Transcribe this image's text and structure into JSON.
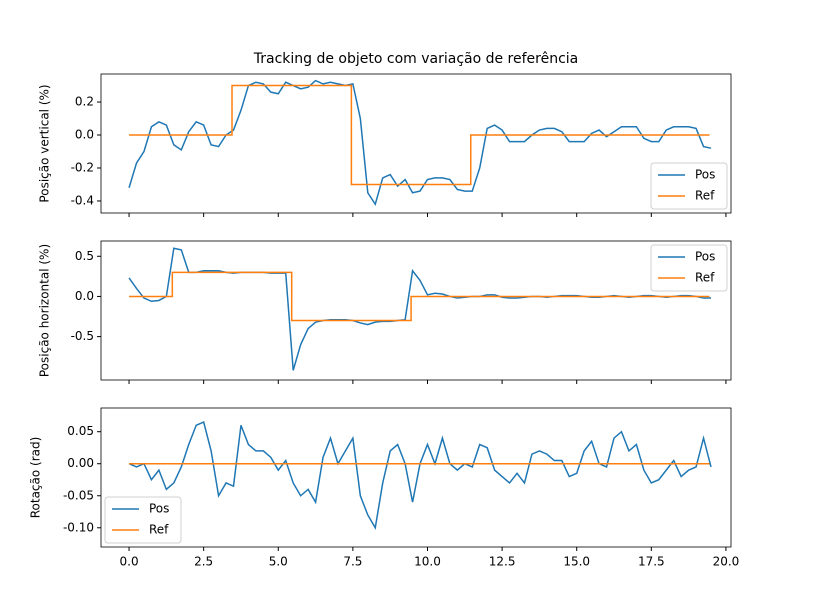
{
  "chart_data": [
    {
      "type": "line",
      "title": "Tracking de objeto com variação de referência",
      "y_label": "Posição vertical (%)",
      "x": [
        0,
        0.25,
        0.5,
        0.75,
        1,
        1.25,
        1.5,
        1.75,
        2,
        2.25,
        2.5,
        2.75,
        3,
        3.25,
        3.5,
        3.75,
        4,
        4.25,
        4.5,
        4.75,
        5,
        5.25,
        5.5,
        5.75,
        6,
        6.25,
        6.5,
        6.75,
        7,
        7.25,
        7.5,
        7.75,
        8,
        8.25,
        8.5,
        8.75,
        9,
        9.25,
        9.5,
        9.75,
        10,
        10.25,
        10.5,
        10.75,
        11,
        11.25,
        11.5,
        11.75,
        12,
        12.25,
        12.5,
        12.75,
        13,
        13.25,
        13.5,
        13.75,
        14,
        14.25,
        14.5,
        14.75,
        15,
        15.25,
        15.5,
        15.75,
        16,
        16.25,
        16.5,
        16.75,
        17,
        17.25,
        17.5,
        17.75,
        18,
        18.25,
        18.5,
        18.75,
        19,
        19.25,
        19.5
      ],
      "series": [
        {
          "name": "Pos",
          "color": "#1f77b4",
          "values": [
            -0.32,
            -0.17,
            -0.1,
            0.05,
            0.08,
            0.06,
            -0.06,
            -0.09,
            0.02,
            0.08,
            0.06,
            -0.06,
            -0.07,
            0.0,
            0.03,
            0.15,
            0.3,
            0.32,
            0.31,
            0.26,
            0.25,
            0.32,
            0.3,
            0.28,
            0.29,
            0.33,
            0.31,
            0.32,
            0.31,
            0.3,
            0.31,
            0.1,
            -0.35,
            -0.42,
            -0.26,
            -0.24,
            -0.31,
            -0.27,
            -0.35,
            -0.34,
            -0.27,
            -0.26,
            -0.26,
            -0.27,
            -0.33,
            -0.34,
            -0.34,
            -0.2,
            0.04,
            0.06,
            0.03,
            -0.04,
            -0.04,
            -0.04,
            0.0,
            0.03,
            0.04,
            0.04,
            0.02,
            -0.04,
            -0.04,
            -0.04,
            0.01,
            0.03,
            -0.01,
            0.02,
            0.05,
            0.05,
            0.05,
            -0.02,
            -0.04,
            -0.04,
            0.03,
            0.05,
            0.05,
            0.05,
            0.04,
            -0.07,
            -0.08
          ]
        },
        {
          "name": "Ref",
          "color": "#ff7f0e",
          "x": [
            0,
            3.45,
            3.45,
            7.45,
            7.45,
            11.45,
            11.45,
            19.45
          ],
          "values": [
            0,
            0,
            0.3,
            0.3,
            -0.3,
            -0.3,
            0,
            0
          ]
        }
      ],
      "xlim": [
        -0.94,
        20.17
      ],
      "xticks": [
        0,
        2.5,
        5,
        7.5,
        10,
        12.5,
        15,
        17.5,
        20
      ],
      "ylim": [
        -0.473,
        0.37
      ],
      "yticks": [
        -0.4,
        -0.2,
        {
          "value": 0,
          "label": "0.0"
        },
        0.2
      ],
      "legend": "lower right"
    },
    {
      "type": "line",
      "y_label": "Posição horizontal (%)",
      "x": [
        0,
        0.25,
        0.5,
        0.75,
        1,
        1.25,
        1.5,
        1.75,
        2,
        2.25,
        2.5,
        2.75,
        3,
        3.25,
        3.5,
        3.75,
        4,
        4.25,
        4.5,
        4.75,
        5,
        5.25,
        5.5,
        5.75,
        6,
        6.25,
        6.5,
        6.75,
        7,
        7.25,
        7.5,
        7.75,
        8,
        8.25,
        8.5,
        8.75,
        9,
        9.25,
        9.5,
        9.75,
        10,
        10.25,
        10.5,
        10.75,
        11,
        11.25,
        11.5,
        11.75,
        12,
        12.25,
        12.5,
        12.75,
        13,
        13.25,
        13.5,
        13.75,
        14,
        14.25,
        14.5,
        14.75,
        15,
        15.25,
        15.5,
        15.75,
        16,
        16.25,
        16.5,
        16.75,
        17,
        17.25,
        17.5,
        17.75,
        18,
        18.25,
        18.5,
        18.75,
        19,
        19.25,
        19.5
      ],
      "series": [
        {
          "name": "Pos",
          "color": "#1f77b4",
          "values": [
            0.23,
            0.1,
            -0.02,
            -0.06,
            -0.05,
            0.0,
            0.6,
            0.58,
            0.3,
            0.3,
            0.32,
            0.32,
            0.32,
            0.3,
            0.29,
            0.3,
            0.3,
            0.3,
            0.3,
            0.29,
            0.29,
            0.29,
            -0.92,
            -0.6,
            -0.4,
            -0.32,
            -0.3,
            -0.29,
            -0.29,
            -0.29,
            -0.3,
            -0.33,
            -0.35,
            -0.32,
            -0.31,
            -0.31,
            -0.3,
            -0.29,
            0.32,
            0.2,
            0.02,
            0.04,
            0.03,
            0.0,
            -0.02,
            -0.01,
            0.0,
            0.0,
            0.02,
            0.02,
            -0.01,
            -0.02,
            -0.02,
            -0.01,
            0.0,
            0.0,
            -0.01,
            0.0,
            0.01,
            0.01,
            0.01,
            0.0,
            -0.01,
            -0.01,
            0.0,
            0.01,
            0.0,
            -0.01,
            0.0,
            0.01,
            0.01,
            0.0,
            -0.01,
            0.0,
            0.01,
            0.01,
            0.0,
            -0.02,
            -0.02
          ]
        },
        {
          "name": "Ref",
          "color": "#ff7f0e",
          "x": [
            0,
            1.45,
            1.45,
            5.45,
            5.45,
            9.45,
            9.45,
            19.45
          ],
          "values": [
            0,
            0,
            0.3,
            0.3,
            -0.3,
            -0.3,
            0,
            0
          ]
        }
      ],
      "xlim": [
        -0.94,
        20.17
      ],
      "xticks": [
        0,
        2.5,
        5,
        7.5,
        10,
        12.5,
        15,
        17.5,
        20
      ],
      "ylim": [
        -1.04,
        0.69
      ],
      "yticks": [
        -0.5,
        {
          "value": 0,
          "label": "0.0"
        },
        0.5
      ],
      "legend": "upper right"
    },
    {
      "type": "line",
      "y_label": "Rotação (rad)",
      "x": [
        0,
        0.25,
        0.5,
        0.75,
        1,
        1.25,
        1.5,
        1.75,
        2,
        2.25,
        2.5,
        2.75,
        3,
        3.25,
        3.5,
        3.75,
        4,
        4.25,
        4.5,
        4.75,
        5,
        5.25,
        5.5,
        5.75,
        6,
        6.25,
        6.5,
        6.75,
        7,
        7.25,
        7.5,
        7.75,
        8,
        8.25,
        8.5,
        8.75,
        9,
        9.25,
        9.5,
        9.75,
        10,
        10.25,
        10.5,
        10.75,
        11,
        11.25,
        11.5,
        11.75,
        12,
        12.25,
        12.5,
        12.75,
        13,
        13.25,
        13.5,
        13.75,
        14,
        14.25,
        14.5,
        14.75,
        15,
        15.25,
        15.5,
        15.75,
        16,
        16.25,
        16.5,
        16.75,
        17,
        17.25,
        17.5,
        17.75,
        18,
        18.25,
        18.5,
        18.75,
        19,
        19.25,
        19.5
      ],
      "series": [
        {
          "name": "Pos",
          "color": "#1f77b4",
          "values": [
            0.0,
            -0.005,
            0.0,
            -0.025,
            -0.01,
            -0.04,
            -0.03,
            -0.005,
            0.03,
            0.06,
            0.065,
            0.02,
            -0.05,
            -0.03,
            -0.035,
            0.06,
            0.03,
            0.02,
            0.02,
            0.01,
            -0.01,
            0.005,
            -0.03,
            -0.05,
            -0.04,
            -0.06,
            0.01,
            0.04,
            0.0,
            0.02,
            0.04,
            -0.05,
            -0.08,
            -0.1,
            -0.03,
            0.02,
            0.03,
            0.0,
            -0.06,
            0.0,
            0.03,
            0.0,
            0.04,
            0.0,
            -0.01,
            0.0,
            -0.005,
            0.03,
            0.025,
            -0.01,
            -0.02,
            -0.03,
            -0.015,
            -0.03,
            0.015,
            0.02,
            0.015,
            0.005,
            0.005,
            -0.02,
            -0.015,
            0.02,
            0.035,
            0.0,
            -0.005,
            0.04,
            0.05,
            0.02,
            0.03,
            -0.01,
            -0.03,
            -0.025,
            -0.01,
            0.005,
            -0.02,
            -0.01,
            -0.005,
            0.04,
            -0.005
          ]
        },
        {
          "name": "Ref",
          "color": "#ff7f0e",
          "x": [
            0,
            19.45
          ],
          "values": [
            0,
            0
          ]
        }
      ],
      "xlim": [
        -0.94,
        20.17
      ],
      "xticks": [
        {
          "value": 0,
          "label": "0.0"
        },
        2.5,
        {
          "value": 5,
          "label": "5.0"
        },
        7.5,
        {
          "value": 10,
          "label": "10.0"
        },
        12.5,
        {
          "value": 15,
          "label": "15.0"
        },
        17.5,
        {
          "value": 20,
          "label": "20.0"
        }
      ],
      "ylim": [
        -0.13,
        0.087
      ],
      "yticks": [
        {
          "value": -0.1,
          "label": "-0.10"
        },
        -0.05,
        {
          "value": 0,
          "label": "0.00"
        },
        0.05
      ],
      "legend": "lower left"
    }
  ]
}
